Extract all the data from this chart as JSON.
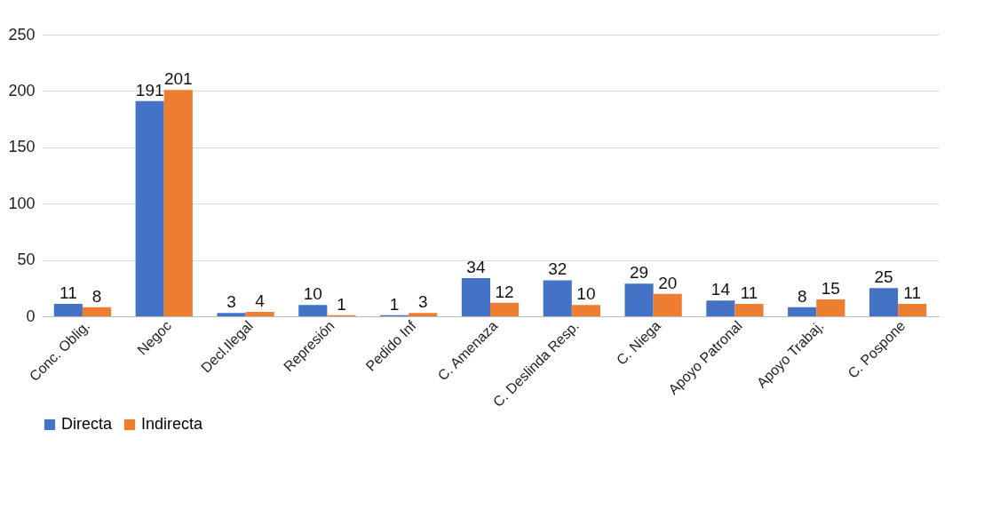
{
  "chart_data": {
    "type": "bar",
    "categories": [
      "Conc. Oblig.",
      "Negoc",
      "Decl.Ilegal",
      "Represión",
      "Pedido Inf",
      "C. Amenaza",
      "C. Deslinda Resp.",
      "C. Niega",
      "Apoyo Patronal",
      "Apoyo Trabaj.",
      "C. Pospone"
    ],
    "series": [
      {
        "name": "Directa",
        "color": "#4472c4",
        "values": [
          11,
          191,
          3,
          10,
          1,
          34,
          32,
          29,
          14,
          8,
          25
        ]
      },
      {
        "name": "Indirecta",
        "color": "#ed7d31",
        "values": [
          8,
          201,
          4,
          1,
          3,
          12,
          10,
          20,
          11,
          15,
          11
        ]
      }
    ],
    "ylim": [
      0,
      250
    ],
    "yticks": [
      0,
      50,
      100,
      150,
      200,
      250
    ],
    "grid": "y",
    "legend": "bottom",
    "data_labels": true
  }
}
